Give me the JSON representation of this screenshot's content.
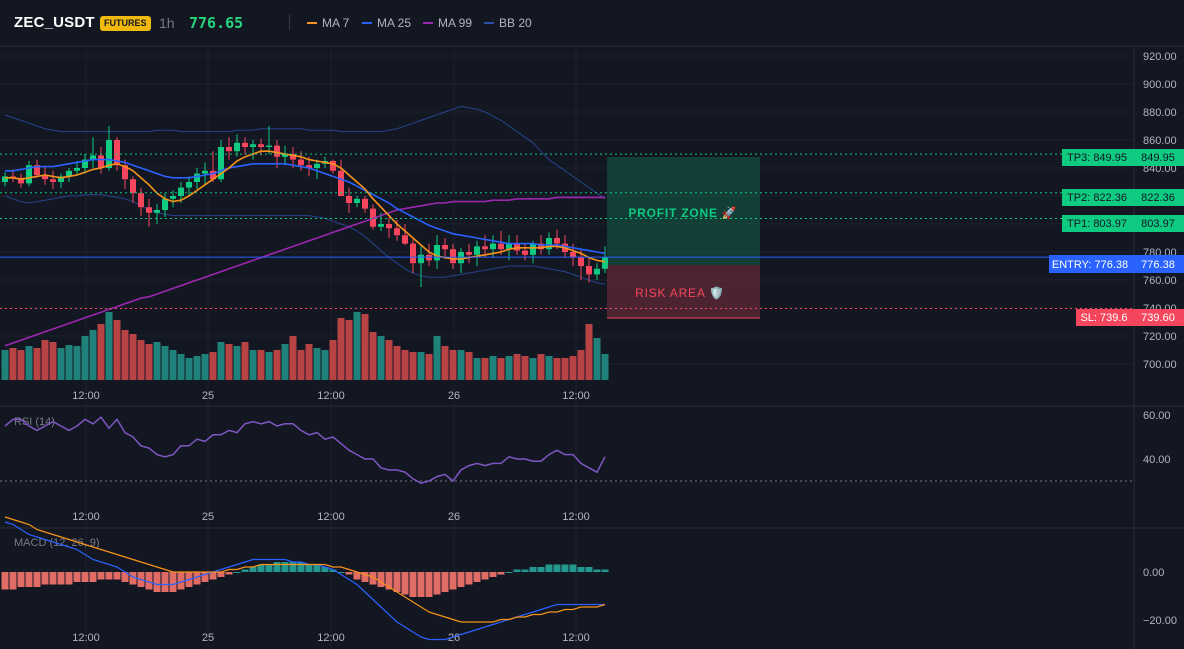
{
  "header": {
    "symbol": "ZEC_USDT",
    "badge": "FUTURES",
    "timeframe": "1h",
    "last_price": "776.65",
    "legend": [
      {
        "label": "MA 7",
        "color": "#f7931a"
      },
      {
        "label": "MA 25",
        "color": "#2962ff"
      },
      {
        "label": "MA 99",
        "color": "#9c27b0"
      },
      {
        "label": "BB 20",
        "color": "#2a4fa8"
      }
    ]
  },
  "price_axis": {
    "ticks": [
      "920.00",
      "900.00",
      "880.00",
      "860.00",
      "840.00",
      "820.00",
      "800.00",
      "780.00",
      "760.00",
      "740.00",
      "720.00",
      "700.00"
    ]
  },
  "time_axis": {
    "labels": [
      "12:00",
      "25",
      "12:00",
      "26",
      "12:00"
    ]
  },
  "levels": {
    "tp3": {
      "tag": "TP3: 849.95",
      "axis": "849.95",
      "value": 849.95
    },
    "tp2": {
      "tag": "TP2: 822.36",
      "axis": "822.36",
      "value": 822.36
    },
    "tp1": {
      "tag": "TP1: 803.97",
      "axis": "803.97",
      "value": 803.97
    },
    "entry": {
      "tag": "ENTRY: 776.38",
      "axis": "776.38",
      "value": 776.38
    },
    "sl": {
      "tag": "SL: 739.6",
      "axis": "739.60",
      "value": 739.6
    }
  },
  "zones": {
    "profit": "PROFIT ZONE 🚀",
    "risk": "RISK AREA 🛡️"
  },
  "rsi": {
    "title": "RSI (14)",
    "ticks": [
      "60.00",
      "40.00"
    ],
    "values": [
      55,
      58,
      58,
      55,
      53,
      55,
      57,
      55,
      53,
      55,
      58,
      56,
      59,
      54,
      58,
      52,
      50,
      46,
      45,
      42,
      41,
      42,
      46,
      46,
      49,
      48,
      51,
      51,
      53,
      52,
      56,
      57,
      56,
      57,
      55,
      56,
      56,
      53,
      51,
      52,
      49,
      50,
      47,
      44,
      42,
      40,
      40,
      36,
      35,
      35,
      34,
      31,
      29,
      30,
      32,
      33,
      30,
      35,
      37,
      38,
      37,
      38,
      38,
      41,
      40,
      40,
      39,
      39,
      42,
      44,
      42,
      42,
      38,
      36,
      34,
      41
    ]
  },
  "macd": {
    "title": "MACD (12, 26, 9)",
    "ticks": [
      "0.00",
      "−20.00"
    ]
  },
  "chart_data": {
    "type": "candlestick",
    "candles": [
      [
        830,
        837,
        827,
        834
      ],
      [
        834,
        839,
        830,
        833
      ],
      [
        833,
        836,
        826,
        829
      ],
      [
        829,
        845,
        827,
        842
      ],
      [
        842,
        846,
        833,
        835
      ],
      [
        835,
        841,
        828,
        832
      ],
      [
        832,
        838,
        825,
        830
      ],
      [
        830,
        836,
        826,
        834
      ],
      [
        834,
        840,
        830,
        838
      ],
      [
        838,
        845,
        835,
        840
      ],
      [
        840,
        850,
        836,
        846
      ],
      [
        846,
        862,
        840,
        849
      ],
      [
        849,
        855,
        836,
        840
      ],
      [
        840,
        870,
        838,
        860
      ],
      [
        860,
        862,
        838,
        842
      ],
      [
        842,
        846,
        825,
        832
      ],
      [
        832,
        834,
        815,
        822
      ],
      [
        822,
        826,
        806,
        812
      ],
      [
        812,
        818,
        798,
        808
      ],
      [
        808,
        814,
        800,
        810
      ],
      [
        810,
        822,
        805,
        818
      ],
      [
        818,
        824,
        812,
        820
      ],
      [
        820,
        830,
        815,
        826
      ],
      [
        826,
        834,
        820,
        830
      ],
      [
        830,
        840,
        825,
        836
      ],
      [
        836,
        844,
        828,
        838
      ],
      [
        838,
        852,
        830,
        832
      ],
      [
        832,
        860,
        830,
        855
      ],
      [
        855,
        862,
        846,
        852
      ],
      [
        852,
        864,
        848,
        858
      ],
      [
        858,
        862,
        850,
        855
      ],
      [
        855,
        860,
        846,
        857
      ],
      [
        857,
        861,
        849,
        855
      ],
      [
        855,
        870,
        850,
        856
      ],
      [
        856,
        860,
        840,
        848
      ],
      [
        848,
        856,
        842,
        850
      ],
      [
        850,
        855,
        840,
        846
      ],
      [
        846,
        852,
        838,
        842
      ],
      [
        842,
        848,
        834,
        840
      ],
      [
        840,
        846,
        832,
        843
      ],
      [
        843,
        848,
        840,
        845
      ],
      [
        845,
        846,
        836,
        838
      ],
      [
        838,
        846,
        820,
        820
      ],
      [
        820,
        826,
        808,
        815
      ],
      [
        815,
        820,
        812,
        818
      ],
      [
        818,
        820,
        808,
        811
      ],
      [
        811,
        814,
        796,
        798
      ],
      [
        798,
        808,
        795,
        800
      ],
      [
        800,
        805,
        790,
        797
      ],
      [
        797,
        803,
        788,
        792
      ],
      [
        792,
        800,
        785,
        786
      ],
      [
        786,
        789,
        765,
        772
      ],
      [
        772,
        784,
        755,
        778
      ],
      [
        778,
        786,
        770,
        774
      ],
      [
        774,
        792,
        768,
        785
      ],
      [
        785,
        790,
        775,
        782
      ],
      [
        782,
        786,
        768,
        772
      ],
      [
        772,
        783,
        765,
        780
      ],
      [
        780,
        786,
        772,
        778
      ],
      [
        778,
        788,
        770,
        784
      ],
      [
        784,
        792,
        776,
        782
      ],
      [
        782,
        792,
        776,
        786
      ],
      [
        786,
        795,
        778,
        782
      ],
      [
        782,
        792,
        774,
        786
      ],
      [
        786,
        792,
        778,
        781
      ],
      [
        781,
        786,
        774,
        778
      ],
      [
        778,
        788,
        772,
        786
      ],
      [
        786,
        792,
        778,
        782
      ],
      [
        782,
        794,
        778,
        790
      ],
      [
        790,
        796,
        782,
        786
      ],
      [
        786,
        792,
        776,
        780
      ],
      [
        780,
        786,
        770,
        776
      ],
      [
        776,
        782,
        760,
        770
      ],
      [
        770,
        776,
        758,
        764
      ],
      [
        764,
        772,
        760,
        768
      ],
      [
        768,
        784,
        765,
        776
      ]
    ],
    "ma7": [
      833,
      833,
      832,
      833,
      834,
      835,
      834,
      833,
      834,
      835,
      837,
      839,
      840,
      842,
      843,
      841,
      838,
      833,
      828,
      822,
      818,
      816,
      817,
      820,
      824,
      828,
      832,
      836,
      840,
      845,
      848,
      850,
      852,
      852,
      851,
      850,
      849,
      848,
      846,
      845,
      844,
      843,
      840,
      835,
      830,
      825,
      818,
      812,
      806,
      800,
      795,
      790,
      785,
      780,
      777,
      776,
      775,
      775,
      776,
      777,
      778,
      779,
      780,
      782,
      783,
      783,
      783,
      783,
      784,
      784,
      783,
      781,
      779,
      776,
      774,
      773
    ],
    "ma25": [
      838,
      838,
      839,
      840,
      841,
      841,
      841,
      842,
      843,
      844,
      845,
      846,
      846,
      846,
      845,
      844,
      842,
      840,
      838,
      836,
      834,
      833,
      833,
      833,
      834,
      835,
      836,
      838,
      840,
      841,
      842,
      843,
      843,
      843,
      843,
      843,
      842,
      841,
      840,
      838,
      836,
      834,
      832,
      830,
      827,
      824,
      821,
      818,
      815,
      811,
      808,
      805,
      802,
      799,
      797,
      795,
      793,
      792,
      791,
      790,
      789,
      788,
      787,
      786,
      786,
      786,
      786,
      785,
      785,
      785,
      784,
      783,
      782,
      781,
      780,
      779
    ],
    "ma99": [
      713,
      715,
      717,
      719,
      721,
      723,
      725,
      727,
      729,
      731,
      733,
      735,
      737,
      739,
      741,
      743,
      745,
      747,
      748,
      750,
      752,
      754,
      756,
      758,
      760,
      762,
      764,
      766,
      768,
      770,
      772,
      774,
      776,
      778,
      780,
      782,
      784,
      786,
      788,
      790,
      792,
      794,
      796,
      798,
      800,
      802,
      804,
      806,
      808,
      810,
      811,
      812,
      813,
      814,
      815,
      815,
      816,
      816,
      816,
      816,
      816,
      817,
      817,
      817,
      818,
      818,
      818,
      818,
      818,
      819,
      819,
      819,
      819,
      819,
      819,
      819
    ],
    "bb_upper": [
      878,
      876,
      874,
      872,
      870,
      868,
      867,
      866,
      866,
      866,
      866,
      866,
      866,
      866,
      866,
      866,
      866,
      866,
      866,
      867,
      867,
      867,
      866,
      866,
      866,
      866,
      866,
      866,
      866,
      867,
      867,
      867,
      868,
      868,
      868,
      868,
      868,
      868,
      867,
      867,
      867,
      867,
      866,
      866,
      866,
      866,
      866,
      866,
      867,
      868,
      870,
      872,
      874,
      876,
      878,
      880,
      882,
      884,
      883,
      882,
      880,
      877,
      874,
      870,
      866,
      862,
      858,
      852,
      846,
      842,
      838,
      834,
      830,
      826,
      822,
      818
    ],
    "bb_lower": [
      820,
      818,
      816,
      815,
      816,
      817,
      818,
      819,
      820,
      820,
      821,
      821,
      821,
      820,
      819,
      818,
      816,
      813,
      810,
      808,
      807,
      806,
      806,
      806,
      806,
      806,
      806,
      806,
      806,
      806,
      806,
      806,
      806,
      806,
      806,
      806,
      806,
      806,
      806,
      805,
      804,
      802,
      800,
      798,
      795,
      791,
      786,
      781,
      776,
      772,
      768,
      765,
      763,
      762,
      762,
      762,
      763,
      764,
      765,
      766,
      767,
      768,
      769,
      770,
      770,
      770,
      770,
      769,
      768,
      767,
      766,
      764,
      762,
      760,
      758,
      757
    ],
    "volumes": [
      30,
      32,
      30,
      34,
      32,
      40,
      38,
      32,
      35,
      34,
      44,
      50,
      56,
      68,
      60,
      50,
      46,
      40,
      36,
      38,
      34,
      30,
      26,
      22,
      24,
      26,
      28,
      38,
      36,
      34,
      38,
      30,
      30,
      28,
      30,
      36,
      44,
      30,
      36,
      32,
      30,
      40,
      62,
      60,
      68,
      66,
      48,
      44,
      40,
      34,
      30,
      28,
      28,
      26,
      44,
      34,
      30,
      30,
      28,
      22,
      22,
      24,
      22,
      24,
      26,
      24,
      22,
      26,
      24,
      22,
      22,
      24,
      30,
      56,
      42,
      26
    ],
    "macd_hist": [
      -7,
      -7,
      -6,
      -6,
      -6,
      -5,
      -5,
      -5,
      -5,
      -4,
      -4,
      -4,
      -3,
      -3,
      -3,
      -4,
      -5,
      -6,
      -7,
      -8,
      -8,
      -8,
      -7,
      -6,
      -5,
      -4,
      -3,
      -2,
      -1,
      0,
      1,
      2,
      3,
      3,
      4,
      4,
      4,
      4,
      3,
      3,
      2,
      1,
      0,
      -1,
      -3,
      -4,
      -5,
      -6,
      -7,
      -8,
      -9,
      -10,
      -10,
      -10,
      -9,
      -8,
      -7,
      -6,
      -5,
      -4,
      -3,
      -2,
      -1,
      0,
      1,
      1,
      2,
      2,
      3,
      3,
      3,
      3,
      2,
      2,
      1,
      1
    ],
    "macd_line": [
      20,
      19,
      17,
      15,
      14,
      13,
      12,
      11,
      10,
      9,
      7,
      5,
      4,
      3,
      2,
      0,
      -2,
      -3,
      -4,
      -5,
      -5,
      -5,
      -4,
      -3,
      -2,
      -1,
      0,
      1,
      2,
      3,
      4,
      5,
      5,
      5,
      5,
      5,
      4,
      4,
      3,
      3,
      2,
      1,
      -1,
      -3,
      -5,
      -8,
      -11,
      -14,
      -17,
      -20,
      -22,
      -24,
      -26,
      -27,
      -27,
      -27,
      -26,
      -25,
      -24,
      -23,
      -22,
      -21,
      -20,
      -19,
      -18,
      -17,
      -16,
      -15,
      -14,
      -13,
      -13,
      -13,
      -13,
      -13,
      -13,
      -13
    ],
    "signal_line": [
      22,
      21,
      20,
      19,
      17,
      16,
      15,
      14,
      13,
      12,
      11,
      10,
      9,
      8,
      7,
      6,
      5,
      4,
      3,
      2,
      1,
      0,
      0,
      0,
      0,
      0,
      0,
      0,
      1,
      1,
      2,
      2,
      3,
      3,
      3,
      3,
      3,
      3,
      3,
      3,
      3,
      2,
      2,
      1,
      0,
      -1,
      -2,
      -4,
      -6,
      -8,
      -10,
      -12,
      -14,
      -16,
      -17,
      -18,
      -19,
      -20,
      -20,
      -20,
      -20,
      -20,
      -19,
      -19,
      -18,
      -18,
      -17,
      -17,
      -16,
      -16,
      -15,
      -15,
      -14,
      -14,
      -14,
      -13
    ]
  },
  "colors": {
    "up": "#26a69a",
    "down": "#ef5350",
    "bright_up": "#0ecb81",
    "bright_down": "#f6465d",
    "entry": "#2962ff",
    "tp": "#0ecb81",
    "sl": "#f6465d",
    "rsi": "#7e57c2",
    "macd": "#2962ff",
    "signal": "#f7931a"
  }
}
